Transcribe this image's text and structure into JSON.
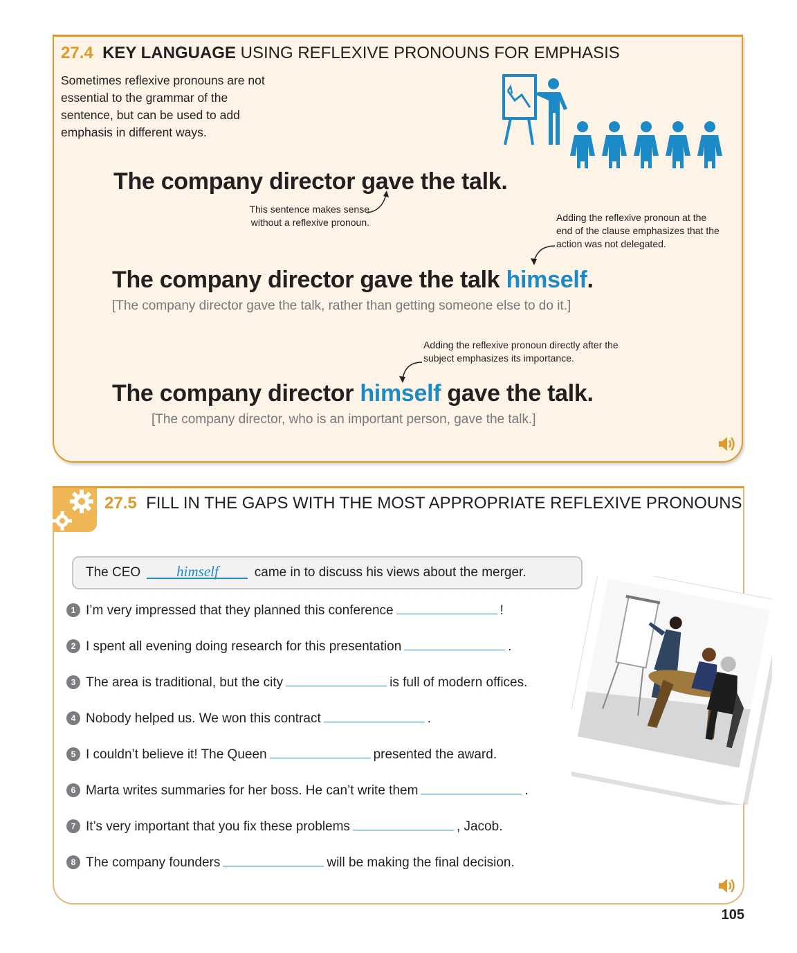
{
  "section_274": {
    "number": "27.4",
    "title_bold": "KEY LANGUAGE",
    "title_rest": "USING REFLEXIVE PRONOUNS FOR EMPHASIS",
    "intro": "Sometimes reflexive pronouns are not essential to the grammar of the sentence, but can be used to add emphasis in different ways.",
    "sentence1": "The company director gave the talk.",
    "note1": "This sentence makes sense without a reflexive pronoun.",
    "note2": "Adding the reflexive pronoun at the end of the clause emphasizes that the action was not delegated.",
    "sentence2_before": "The company director gave the talk ",
    "sentence2_highlight": "himself",
    "sentence2_after": ".",
    "gloss2": "[The company director gave the talk, rather than getting someone else to do it.]",
    "note3": "Adding the reflexive pronoun directly after the subject emphasizes its importance.",
    "sentence3_before": "The company director ",
    "sentence3_highlight": "himself",
    "sentence3_after": " gave the talk.",
    "gloss3": "[The company director, who is an important person, gave the talk.]"
  },
  "section_275": {
    "number": "27.5",
    "title": "FILL IN THE GAPS WITH THE MOST APPROPRIATE REFLEXIVE PRONOUNS",
    "example": {
      "before": "The CEO",
      "answer": "himself",
      "after": "came in to discuss his views about the merger."
    },
    "questions": [
      {
        "n": "1",
        "before": "I’m very impressed that they planned this conference",
        "after": "!"
      },
      {
        "n": "2",
        "before": "I spent all evening doing research for this presentation",
        "after": "."
      },
      {
        "n": "3",
        "before": "The area is traditional, but the city",
        "after": "is full of modern offices."
      },
      {
        "n": "4",
        "before": "Nobody helped us. We won this contract",
        "after": "."
      },
      {
        "n": "5",
        "before": "I couldn’t believe it! The Queen",
        "after": "presented the award."
      },
      {
        "n": "6",
        "before": "Marta writes summaries for her boss. He can’t write them",
        "after": "."
      },
      {
        "n": "7",
        "before": "It’s very important that you fix these problems",
        "after": ", Jacob."
      },
      {
        "n": "8",
        "before": "The company founders",
        "after": "will be making the final decision."
      }
    ]
  },
  "page_number": "105",
  "colors": {
    "orange": "#e09a2b",
    "blue": "#1d8ac8",
    "cream": "#fdf3e6"
  },
  "icons": [
    "presentation-audience-icon",
    "gear-icon",
    "speaker-icon"
  ]
}
